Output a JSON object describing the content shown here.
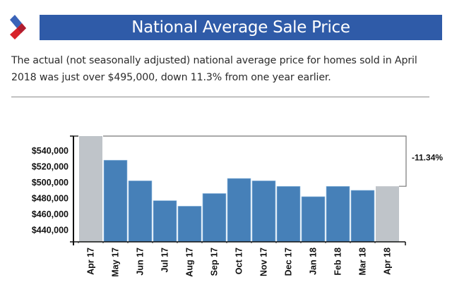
{
  "header": {
    "logo_icon": "brand-chevron-logo",
    "title": "National Average Sale Price"
  },
  "description": "The actual (not seasonally adjusted) national average price for homes sold in April 2018 was just over $495,000, down 11.3% from one year earlier.",
  "colors": {
    "banner": "#2f5ba8",
    "bar_primary": "#4680b8",
    "bar_highlight": "#bfc4c9",
    "logo_blue": "#3a63b8",
    "logo_red": "#d8232a"
  },
  "chart_data": {
    "type": "bar",
    "title": "National Average Sale Price",
    "xlabel": "",
    "ylabel": "",
    "categories": [
      "Apr 17",
      "May 17",
      "Jun 17",
      "Jul 17",
      "Aug 17",
      "Sep 17",
      "Oct 17",
      "Nov 17",
      "Dec 17",
      "Jan 18",
      "Feb 18",
      "Mar 18",
      "Apr 18"
    ],
    "values": [
      558400,
      528000,
      502000,
      477000,
      470000,
      486000,
      505000,
      502000,
      495000,
      482000,
      495000,
      490000,
      495100
    ],
    "highlighted": [
      "Apr 17",
      "Apr 18"
    ],
    "ylim": [
      425000,
      558400
    ],
    "yticks": [
      440000,
      460000,
      480000,
      500000,
      520000,
      540000
    ],
    "ytick_labels": [
      "$440,000",
      "$460,000",
      "$480,000",
      "$500,000",
      "$520,000",
      "$540,000"
    ],
    "annotation": {
      "text": "-11.34%",
      "from": "Apr 17",
      "to": "Apr 18"
    },
    "grid": false,
    "legend": "none"
  }
}
